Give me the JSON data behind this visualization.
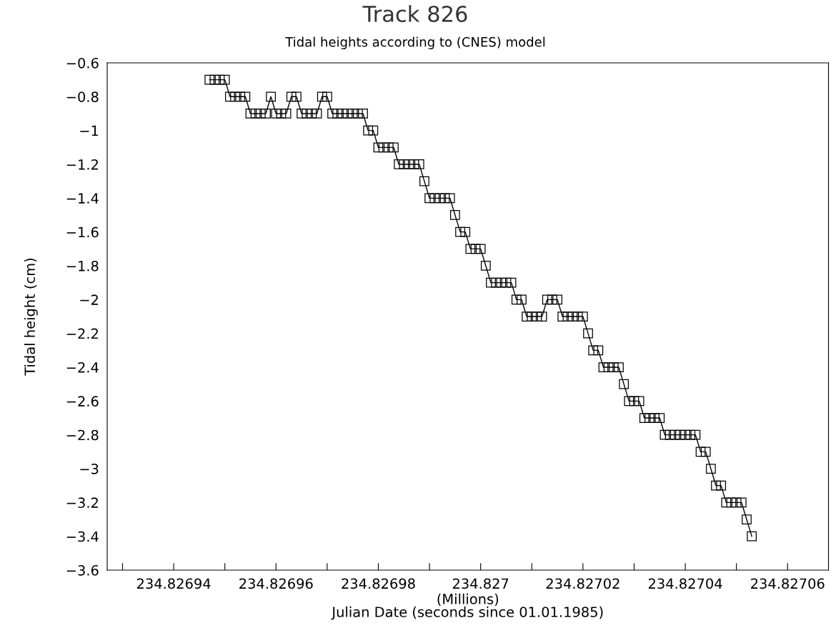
{
  "chart_data": {
    "type": "line",
    "title": "Track 826",
    "subtitle": "Tidal heights according to (CNES) model",
    "xlabel": "(Millions)\nJulian Date (seconds since 01.01.1985)",
    "ylabel": "Tidal height (cm)",
    "x": [
      234.826947,
      234.826948,
      234.826949,
      234.82695,
      234.826951,
      234.826952,
      234.826953,
      234.826954,
      234.826955,
      234.826956,
      234.826957,
      234.826958,
      234.826959,
      234.82696,
      234.826961,
      234.826962,
      234.826963,
      234.826964,
      234.826965,
      234.826966,
      234.826967,
      234.826968,
      234.826969,
      234.82697,
      234.826971,
      234.826972,
      234.826973,
      234.826974,
      234.826975,
      234.826976,
      234.826977,
      234.826978,
      234.826979,
      234.82698,
      234.826981,
      234.826982,
      234.826983,
      234.826984,
      234.826985,
      234.826986,
      234.826987,
      234.826988,
      234.826989,
      234.82699,
      234.826991,
      234.826992,
      234.826993,
      234.826994,
      234.826995,
      234.826996,
      234.826997,
      234.826998,
      234.826999,
      234.827,
      234.827001,
      234.827002,
      234.827003,
      234.827004,
      234.827005,
      234.827006,
      234.827007,
      234.827008,
      234.827009,
      234.82701,
      234.827011,
      234.827012,
      234.827013,
      234.827014,
      234.827015,
      234.827016,
      234.827017,
      234.827018,
      234.827019,
      234.82702,
      234.827021,
      234.827022,
      234.827023,
      234.827024,
      234.827025,
      234.827026,
      234.827027,
      234.827028,
      234.827029,
      234.82703,
      234.827031,
      234.827032,
      234.827033,
      234.827034,
      234.827035,
      234.827036,
      234.827037,
      234.827038,
      234.827039,
      234.82704,
      234.827041,
      234.827042,
      234.827043,
      234.827044,
      234.827045,
      234.827046,
      234.827047,
      234.827048,
      234.827049,
      234.82705,
      234.827051,
      234.827052,
      234.827053
    ],
    "series": [
      {
        "color": "#000000",
        "values": [
          -0.7,
          -0.7,
          -0.7,
          -0.7,
          -0.8,
          -0.8,
          -0.8,
          -0.8,
          -0.9,
          -0.9,
          -0.9,
          -0.9,
          -0.8,
          -0.9,
          -0.9,
          -0.9,
          -0.8,
          -0.8,
          -0.9,
          -0.9,
          -0.9,
          -0.9,
          -0.8,
          -0.8,
          -0.9,
          -0.9,
          -0.9,
          -0.9,
          -0.9,
          -0.9,
          -0.9,
          -1.0,
          -1.0,
          -1.1,
          -1.1,
          -1.1,
          -1.1,
          -1.2,
          -1.2,
          -1.2,
          -1.2,
          -1.2,
          -1.3,
          -1.4,
          -1.4,
          -1.4,
          -1.4,
          -1.4,
          -1.5,
          -1.6,
          -1.6,
          -1.7,
          -1.7,
          -1.7,
          -1.8,
          -1.9,
          -1.9,
          -1.9,
          -1.9,
          -1.9,
          -2.0,
          -2.0,
          -2.1,
          -2.1,
          -2.1,
          -2.1,
          -2.0,
          -2.0,
          -2.0,
          -2.1,
          -2.1,
          -2.1,
          -2.1,
          -2.1,
          -2.2,
          -2.3,
          -2.3,
          -2.4,
          -2.4,
          -2.4,
          -2.4,
          -2.5,
          -2.6,
          -2.6,
          -2.6,
          -2.7,
          -2.7,
          -2.7,
          -2.7,
          -2.8,
          -2.8,
          -2.8,
          -2.8,
          -2.8,
          -2.8,
          -2.8,
          -2.9,
          -2.9,
          -3.0,
          -3.1,
          -3.1,
          -3.2,
          -3.2,
          -3.2,
          -3.2,
          -3.3,
          -3.4
        ]
      }
    ],
    "marker": "square",
    "line_style": "solid",
    "grid": false,
    "legend": false,
    "xlim": [
      234.826927,
      234.827068
    ],
    "xticks": [
      {
        "value": 234.82693,
        "label": null
      },
      234.82694,
      {
        "value": 234.82695,
        "label": null
      },
      234.82696,
      {
        "value": 234.82697,
        "label": null
      },
      234.82698,
      {
        "value": 234.82699,
        "label": null
      },
      234.827,
      {
        "value": 234.82701,
        "label": null
      },
      234.82702,
      {
        "value": 234.82703,
        "label": null
      },
      234.82704,
      {
        "value": 234.82705,
        "label": null
      },
      234.82706
    ],
    "ylim": [
      -3.6,
      -0.6
    ],
    "yticks": [
      {
        "value": -0.6,
        "label": "−0.6"
      },
      {
        "value": -0.8,
        "label": "−0.8"
      },
      {
        "value": -1,
        "label": "−1"
      },
      {
        "value": -1.2,
        "label": "−1.2"
      },
      {
        "value": -1.4,
        "label": "−1.4"
      },
      {
        "value": -1.6,
        "label": "−1.6"
      },
      {
        "value": -1.8,
        "label": "−1.8"
      },
      {
        "value": -2,
        "label": "−2"
      },
      {
        "value": -2.2,
        "label": "−2.2"
      },
      {
        "value": -2.4,
        "label": "−2.4"
      },
      {
        "value": -2.6,
        "label": "−2.6"
      },
      {
        "value": -2.8,
        "label": "−2.8"
      },
      {
        "value": -3,
        "label": "−3"
      },
      {
        "value": -3.2,
        "label": "−3.2"
      },
      {
        "value": -3.4,
        "label": "−3.4"
      },
      {
        "value": -3.6,
        "label": "−3.6"
      }
    ]
  }
}
